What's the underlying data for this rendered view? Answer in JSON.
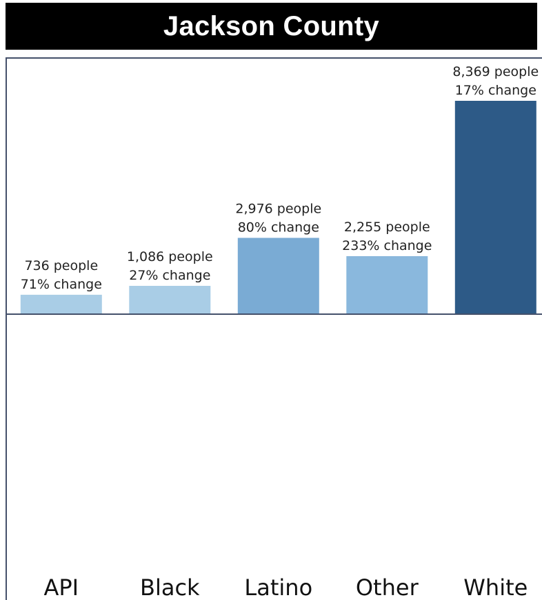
{
  "chart_data": {
    "type": "bar",
    "title": "Jackson County",
    "categories": [
      "API",
      "Black",
      "Latino",
      "Other",
      "White"
    ],
    "values": [
      736,
      1086,
      2976,
      2255,
      8369
    ],
    "pct_change_labels": [
      "71% change",
      "27% change",
      "80% change",
      "233% change",
      "17% change"
    ],
    "value_labels": [
      "736 people",
      "1,086 people",
      "2,976 people",
      "2,255 people",
      "8,369 people"
    ],
    "colors": [
      "#a9cde6",
      "#a9cde6",
      "#7aabd4",
      "#8ab8dd",
      "#2d5a87"
    ],
    "ylim": [
      0,
      8369
    ],
    "grid": false,
    "xlabel": "",
    "ylabel": ""
  }
}
